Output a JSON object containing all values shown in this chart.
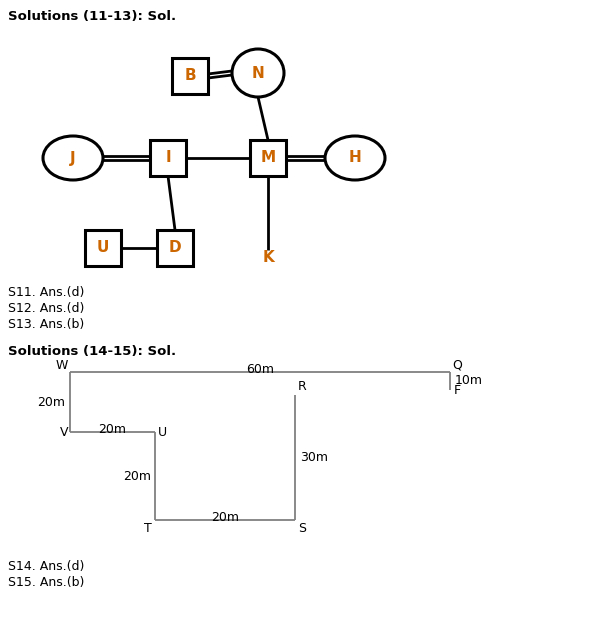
{
  "title1": "Solutions (11-13): Sol.",
  "title2": "Solutions (14-15): Sol.",
  "answers1": [
    "S11. Ans.(d)",
    "S12. Ans.(d)",
    "S13. Ans.(b)"
  ],
  "answers2": [
    "S14. Ans.(d)",
    "S15. Ans.(b)"
  ],
  "bg_color": "#ffffff",
  "text_color": "#000000",
  "label_color": "#cc6600",
  "line_color": "#000000",
  "dir_line_color": "#808080"
}
